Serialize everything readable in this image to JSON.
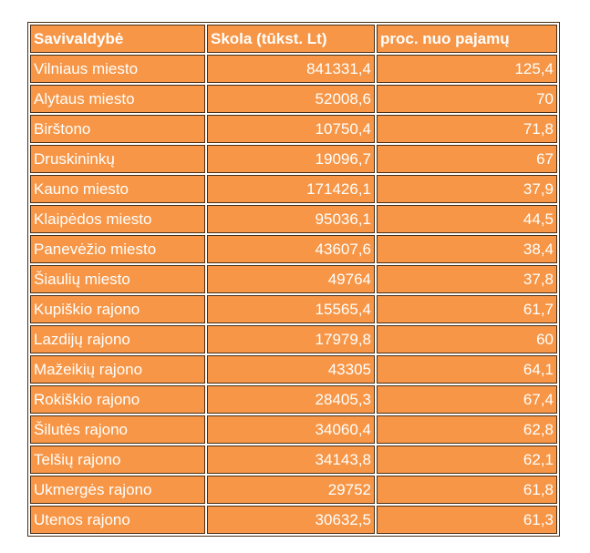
{
  "table": {
    "headers": [
      "Savivaldybė",
      "Skola (tūkst. Lt)",
      "proc. nuo pajamų"
    ],
    "rows": [
      [
        "Vilniaus miesto",
        "841331,4",
        "125,4"
      ],
      [
        "Alytaus miesto",
        "52008,6",
        "70"
      ],
      [
        "Birštono",
        "10750,4",
        "71,8"
      ],
      [
        "Druskininkų",
        "19096,7",
        "67"
      ],
      [
        "Kauno miesto",
        "171426,1",
        "37,9"
      ],
      [
        "Klaipėdos miesto",
        "95036,1",
        "44,5"
      ],
      [
        "Panevėžio miesto",
        "43607,6",
        "38,4"
      ],
      [
        "Šiaulių miesto",
        "49764",
        "37,8"
      ],
      [
        "Kupiškio rajono",
        "15565,4",
        "61,7"
      ],
      [
        "Lazdijų rajono",
        "17979,8",
        "60"
      ],
      [
        "Mažeikių rajono",
        "43305",
        "64,1"
      ],
      [
        "Rokiškio rajono",
        "28405,3",
        "67,4"
      ],
      [
        "Šilutės rajono",
        "34060,4",
        "62,8"
      ],
      [
        "Telšių rajono",
        "34143,8",
        "62,1"
      ],
      [
        "Ukmergės rajono",
        "29752",
        "61,8"
      ],
      [
        "Utenos rajono",
        "30632,5",
        "61,3"
      ]
    ]
  },
  "colors": {
    "cell": "#F79646",
    "border": "#4a2e14",
    "text": "#ffffff"
  }
}
